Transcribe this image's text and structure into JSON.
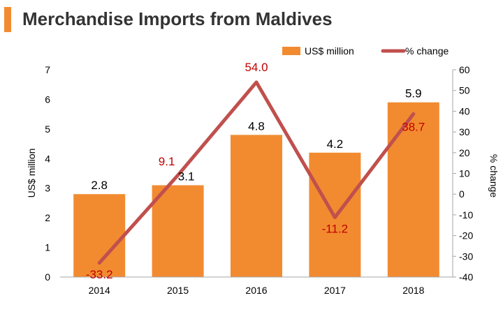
{
  "title": "Merchandise Imports from Maldives",
  "colors": {
    "bar": "#f28b30",
    "line": "#c0504d",
    "title_accent": "#f28b30",
    "line_label": "#c00000"
  },
  "chart_data": {
    "type": "bar",
    "title": "Merchandise Imports from Maldives",
    "categories": [
      "2014",
      "2015",
      "2016",
      "2017",
      "2018"
    ],
    "series": [
      {
        "name": "US$ million",
        "type": "bar",
        "axis": "left",
        "values": [
          2.8,
          3.1,
          4.8,
          4.2,
          5.9
        ],
        "labels": [
          "2.8",
          "3.1",
          "4.8",
          "4.2",
          "5.9"
        ]
      },
      {
        "name": "% change",
        "type": "line",
        "axis": "right",
        "values": [
          -33.2,
          9.1,
          54.0,
          -11.2,
          38.7
        ],
        "labels": [
          "-33.2",
          "9.1",
          "54.0",
          "-11.2",
          "38.7"
        ]
      }
    ],
    "ylabel": "US$ million",
    "y2label": "% change",
    "ylim": [
      0,
      7
    ],
    "y2lim": [
      -40,
      60
    ],
    "yticks": [
      "0",
      "1",
      "2",
      "3",
      "4",
      "5",
      "6",
      "7"
    ],
    "y2ticks": [
      "-40",
      "-30",
      "-20",
      "-10",
      "0",
      "10",
      "20",
      "30",
      "40",
      "50",
      "60"
    ],
    "grid": false,
    "legend_position": "top-right"
  }
}
